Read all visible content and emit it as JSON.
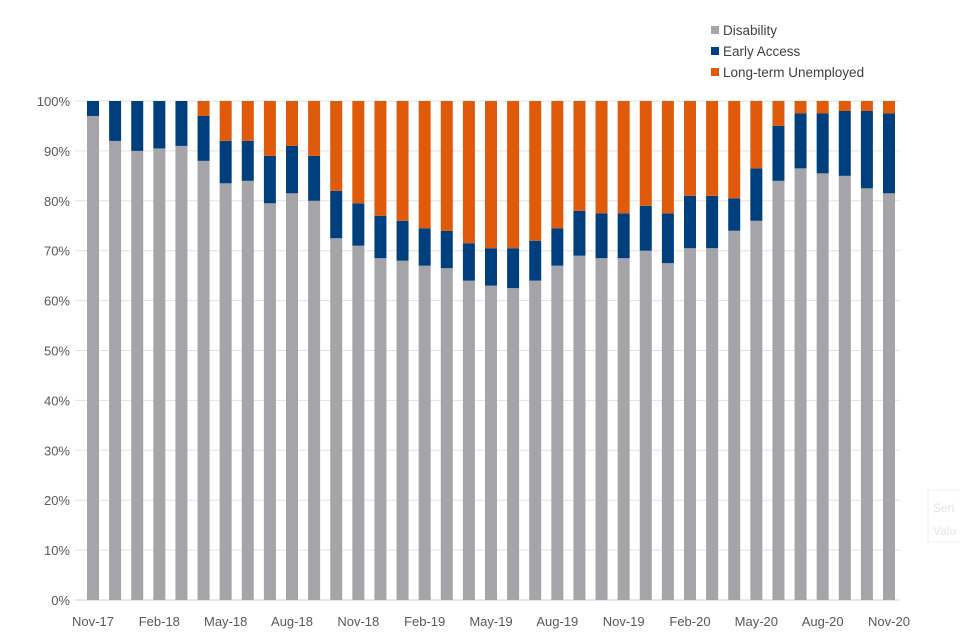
{
  "chart_data": {
    "type": "bar",
    "stacked": true,
    "title": "",
    "xlabel": "",
    "ylabel": "",
    "ylim": [
      0,
      100
    ],
    "yticks": [
      "0%",
      "10%",
      "20%",
      "30%",
      "40%",
      "50%",
      "60%",
      "70%",
      "80%",
      "90%",
      "100%"
    ],
    "categories": [
      "Nov-17",
      "Dec-17",
      "Jan-18",
      "Feb-18",
      "Mar-18",
      "Apr-18",
      "May-18",
      "Jun-18",
      "Jul-18",
      "Aug-18",
      "Sep-18",
      "Oct-18",
      "Nov-18",
      "Dec-18",
      "Jan-19",
      "Feb-19",
      "Mar-19",
      "Apr-19",
      "May-19",
      "Jun-19",
      "Jul-19",
      "Aug-19",
      "Sep-19",
      "Oct-19",
      "Nov-19",
      "Dec-19",
      "Jan-20",
      "Feb-20",
      "Mar-20",
      "Apr-20",
      "May-20",
      "Jun-20",
      "Jul-20",
      "Aug-20",
      "Sep-20",
      "Oct-20",
      "Nov-20"
    ],
    "xtick_labels": [
      "Nov-17",
      "Feb-18",
      "May-18",
      "Aug-18",
      "Nov-18",
      "Feb-19",
      "May-19",
      "Aug-19",
      "Nov-19",
      "Feb-20",
      "May-20",
      "Aug-20",
      "Nov-20"
    ],
    "legend_position": "top-right",
    "grid": true,
    "series": [
      {
        "name": "Disability",
        "color": "#a5a5a9",
        "values": [
          97,
          92,
          90,
          90.5,
          91,
          88,
          83.5,
          84,
          79.5,
          81.5,
          80,
          72.5,
          71,
          68.5,
          68,
          67,
          66.5,
          64,
          63,
          62.5,
          64,
          67,
          69,
          68.5,
          68.5,
          70,
          67.5,
          70.5,
          70.5,
          74,
          76,
          84,
          86.5,
          85.5,
          85,
          82.5,
          81.5
        ]
      },
      {
        "name": "Early Access",
        "color": "#003f7d",
        "values": [
          3,
          8,
          10,
          9.5,
          9,
          9,
          8.5,
          8,
          9.5,
          9.5,
          9,
          9.5,
          8.5,
          8.5,
          8,
          7.5,
          7.5,
          7.5,
          7.5,
          8,
          8,
          7.5,
          9,
          9,
          9,
          9,
          10,
          10.5,
          10.5,
          6.5,
          10.5,
          11,
          11,
          12,
          13,
          15.5,
          16
        ]
      },
      {
        "name": "Long-term Unemployed",
        "color": "#e05a0c",
        "values": [
          0,
          0,
          0,
          0,
          0,
          3,
          8,
          8,
          11,
          9,
          11,
          18,
          20.5,
          23,
          24,
          25.5,
          26,
          28.5,
          29.5,
          29.5,
          28,
          25.5,
          22,
          22.5,
          22.5,
          21,
          22.5,
          19,
          19,
          19.5,
          13.5,
          5,
          2.5,
          2.5,
          2,
          2,
          2.5
        ]
      }
    ]
  },
  "tooltip_fragment": {
    "line1": "Seri",
    "line2": "Valu"
  }
}
